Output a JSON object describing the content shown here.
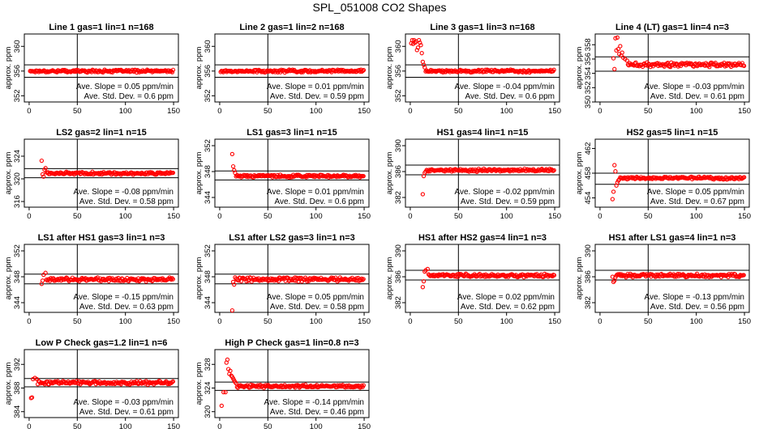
{
  "figure_title": "SPL_051008  CO2 Shapes",
  "colors": {
    "points": "#ff0000",
    "axes": "#000000",
    "background": "#ffffff"
  },
  "slope_prefix": "Ave. Slope =",
  "slope_unit": "ppm/min",
  "std_prefix": "Ave. Std. Dev. =",
  "std_unit": "ppm",
  "chart_data": [
    {
      "type": "scatter",
      "title": "Line 1 gas=1 lin=1 n=168",
      "ylabel": "approx. ppm",
      "xlim": [
        -5,
        155
      ],
      "ylim": [
        351,
        362
      ],
      "xticks": [
        0,
        50,
        100,
        150
      ],
      "yticks": [
        352,
        356,
        360
      ],
      "hlines": [
        357,
        355
      ],
      "vline": 50,
      "level": 356.0,
      "noise": 0.25,
      "spike": [],
      "slope": "0.05",
      "std": "0.6"
    },
    {
      "type": "scatter",
      "title": "Line 2 gas=1 lin=2 n=168",
      "ylabel": "approx. ppm",
      "xlim": [
        -5,
        155
      ],
      "ylim": [
        351,
        362
      ],
      "xticks": [
        0,
        50,
        100,
        150
      ],
      "yticks": [
        352,
        356,
        360
      ],
      "hlines": [
        357,
        355
      ],
      "vline": 50,
      "level": 356.0,
      "noise": 0.25,
      "spike": [],
      "slope": "0.01",
      "std": "0.59"
    },
    {
      "type": "scatter",
      "title": "Line 3 gas=1 lin=3 n=168",
      "ylabel": "approx. ppm",
      "xlim": [
        -5,
        155
      ],
      "ylim": [
        351,
        362
      ],
      "xticks": [
        0,
        50,
        100,
        150
      ],
      "yticks": [
        352,
        356,
        360
      ],
      "hlines": [
        357,
        355
      ],
      "vline": 50,
      "level": 356.0,
      "noise": 0.25,
      "spike": [
        [
          1,
          360.5
        ],
        [
          2,
          361
        ],
        [
          3,
          360.4
        ],
        [
          4,
          361
        ],
        [
          5,
          360.6
        ],
        [
          6,
          360.8
        ],
        [
          7,
          359.4
        ],
        [
          8,
          359.8
        ],
        [
          9,
          361
        ],
        [
          10,
          360.6
        ],
        [
          11,
          360.2
        ],
        [
          12,
          358.9
        ],
        [
          13,
          357.5
        ],
        [
          14,
          357.0
        ],
        [
          15,
          356.6
        ]
      ],
      "slope": "-0.04",
      "std": "0.6"
    },
    {
      "type": "scatter",
      "title": "Line 4 (LT) gas=1 lin=4 n=3",
      "ylabel": "approx. ppm",
      "xlim": [
        -5,
        155
      ],
      "ylim": [
        350,
        359.5
      ],
      "xticks": [
        0,
        50,
        100,
        150
      ],
      "yticks": [
        350,
        352,
        354,
        356,
        358
      ],
      "hlines": [
        356.3,
        354.3
      ],
      "vline": 50,
      "level": 355.2,
      "noise": 0.35,
      "spike": [
        [
          14,
          356.1
        ],
        [
          15,
          354.6
        ],
        [
          16,
          358.9
        ],
        [
          17,
          357.2
        ],
        [
          18,
          359
        ],
        [
          19,
          357.4
        ],
        [
          20,
          356.7
        ],
        [
          21,
          357.8
        ],
        [
          22,
          356.5
        ],
        [
          23,
          356.9
        ],
        [
          24,
          356.2
        ],
        [
          26,
          356.0
        ],
        [
          28,
          355.8
        ]
      ],
      "slope": "-0.03",
      "std": "0.61"
    },
    {
      "type": "scatter",
      "title": "LS2 gas=2 lin=1 n=15",
      "ylabel": "approx. ppm",
      "xlim": [
        -5,
        155
      ],
      "ylim": [
        315,
        327
      ],
      "xticks": [
        0,
        50,
        100,
        150
      ],
      "yticks": [
        316,
        320,
        324
      ],
      "hlines": [
        321.8,
        320.2
      ],
      "vline": 50,
      "level": 321.0,
      "noise": 0.3,
      "spike": [
        [
          13,
          323.2
        ],
        [
          14,
          320.8
        ],
        [
          15,
          320.4
        ],
        [
          16,
          321.6
        ],
        [
          17,
          321.9
        ]
      ],
      "slope": "-0.08",
      "std": "0.58"
    },
    {
      "type": "scatter",
      "title": "LS1 gas=3 lin=1 n=15",
      "ylabel": "approx. ppm",
      "xlim": [
        -5,
        155
      ],
      "ylim": [
        342.5,
        353
      ],
      "xticks": [
        0,
        50,
        100,
        150
      ],
      "yticks": [
        344,
        348,
        352
      ],
      "hlines": [
        348.1,
        346.7
      ],
      "vline": 50,
      "level": 347.3,
      "noise": 0.25,
      "spike": [
        [
          13,
          350.7
        ],
        [
          14,
          348.8
        ],
        [
          15,
          348.2
        ],
        [
          16,
          347.8
        ]
      ],
      "slope": "0.01",
      "std": "0.6"
    },
    {
      "type": "scatter",
      "title": "HS1 gas=4 lin=1 n=15",
      "ylabel": "approx. ppm",
      "xlim": [
        -5,
        155
      ],
      "ylim": [
        380.5,
        391
      ],
      "xticks": [
        0,
        50,
        100,
        150
      ],
      "yticks": [
        382,
        386,
        390
      ],
      "hlines": [
        387,
        385.5
      ],
      "vline": 50,
      "level": 386.2,
      "noise": 0.25,
      "spike": [
        [
          13,
          382.5
        ],
        [
          14,
          385.3
        ],
        [
          15,
          385.8
        ],
        [
          16,
          386.0
        ]
      ],
      "slope": "-0.02",
      "std": "0.59"
    },
    {
      "type": "scatter",
      "title": "HS2 gas=5 lin=1 n=15",
      "ylabel": "approx. ppm",
      "xlim": [
        -5,
        155
      ],
      "ylim": [
        452.5,
        463.5
      ],
      "xticks": [
        0,
        50,
        100,
        150
      ],
      "yticks": [
        454,
        458,
        462
      ],
      "hlines": [
        458,
        456.2
      ],
      "vline": 50,
      "level": 457.2,
      "noise": 0.25,
      "spike": [
        [
          13,
          453.8
        ],
        [
          14,
          455
        ],
        [
          15,
          459.3
        ],
        [
          16,
          458.3
        ],
        [
          17,
          456
        ],
        [
          18,
          456.5
        ],
        [
          19,
          456.8
        ],
        [
          20,
          457
        ]
      ],
      "slope": "0.05",
      "std": "0.67"
    },
    {
      "type": "scatter",
      "title": "LS1 after HS1 gas=3 lin=1 n=3",
      "ylabel": "approx. ppm",
      "xlim": [
        -5,
        155
      ],
      "ylim": [
        342.5,
        353
      ],
      "xticks": [
        0,
        50,
        100,
        150
      ],
      "yticks": [
        344,
        348,
        352
      ],
      "hlines": [
        348.4,
        346.9
      ],
      "vline": 50,
      "level": 347.6,
      "noise": 0.35,
      "spike": [
        [
          13,
          346.9
        ],
        [
          14,
          347.4
        ],
        [
          15,
          348.3
        ],
        [
          17,
          348.6
        ]
      ],
      "slope": "-0.15",
      "std": "0.63"
    },
    {
      "type": "scatter",
      "title": "LS1 after LS2 gas=3 lin=1 n=3",
      "ylabel": "approx. ppm",
      "xlim": [
        -5,
        155
      ],
      "ylim": [
        342.5,
        353
      ],
      "xticks": [
        0,
        50,
        100,
        150
      ],
      "yticks": [
        344,
        348,
        352
      ],
      "hlines": [
        348.4,
        346.9
      ],
      "vline": 50,
      "level": 347.6,
      "noise": 0.35,
      "spike": [
        [
          13,
          342.8
        ],
        [
          14,
          347.2
        ],
        [
          15,
          346.8
        ],
        [
          16,
          347.9
        ]
      ],
      "slope": "0.05",
      "std": "0.58"
    },
    {
      "type": "scatter",
      "title": "HS1 after HS2 gas=4 lin=1 n=3",
      "ylabel": "approx. ppm",
      "xlim": [
        -5,
        155
      ],
      "ylim": [
        380.5,
        391
      ],
      "xticks": [
        0,
        50,
        100,
        150
      ],
      "yticks": [
        382,
        386,
        390
      ],
      "hlines": [
        387,
        385.5
      ],
      "vline": 50,
      "level": 386.2,
      "noise": 0.3,
      "spike": [
        [
          13,
          384.4
        ],
        [
          14,
          385.3
        ],
        [
          15,
          386.8
        ],
        [
          16,
          387.0
        ],
        [
          18,
          387.2
        ]
      ],
      "slope": "0.02",
      "std": "0.62"
    },
    {
      "type": "scatter",
      "title": "HS1 after LS1 gas=4 lin=1 n=3",
      "ylabel": "approx. ppm",
      "xlim": [
        -5,
        155
      ],
      "ylim": [
        380.5,
        391
      ],
      "xticks": [
        0,
        50,
        100,
        150
      ],
      "yticks": [
        382,
        386,
        390
      ],
      "hlines": [
        387,
        385.5
      ],
      "vline": 50,
      "level": 386.2,
      "noise": 0.3,
      "spike": [
        [
          13,
          386.0
        ],
        [
          14,
          385.2
        ],
        [
          15,
          385.4
        ],
        [
          16,
          385.9
        ]
      ],
      "slope": "-0.13",
      "std": "0.56"
    },
    {
      "type": "scatter",
      "title": "Low P Check gas=1.2 lin=1 n=6",
      "ylabel": "approx. ppm",
      "xlim": [
        -5,
        155
      ],
      "ylim": [
        383,
        394.5
      ],
      "xticks": [
        0,
        50,
        100,
        150
      ],
      "yticks": [
        384,
        388,
        392
      ],
      "hlines": [
        389.6,
        388.2
      ],
      "vline": 50,
      "level": 388.9,
      "noise": 0.35,
      "spike": [
        [
          2,
          386.3
        ],
        [
          3,
          386.4
        ],
        [
          4,
          389.5
        ],
        [
          6,
          389.7
        ],
        [
          8,
          389.5
        ]
      ],
      "slope": "-0.03",
      "std": "0.61"
    },
    {
      "type": "scatter",
      "title": "High P Check gas=1 lin=0.8 n=3",
      "ylabel": "approx. ppm",
      "xlim": [
        -5,
        155
      ],
      "ylim": [
        319,
        330.5
      ],
      "xticks": [
        0,
        50,
        100,
        150
      ],
      "yticks": [
        320,
        324,
        328
      ],
      "hlines": [
        325,
        323.6
      ],
      "vline": 50,
      "level": 324.3,
      "noise": 0.3,
      "spike": [
        [
          2,
          321
        ],
        [
          4,
          323.3
        ],
        [
          6,
          323.3
        ],
        [
          7,
          328.3
        ],
        [
          8,
          328.8
        ],
        [
          9,
          327.2
        ],
        [
          10,
          326.4
        ],
        [
          11,
          326.9
        ],
        [
          12,
          326.1
        ],
        [
          13,
          325.9
        ],
        [
          14,
          325.6
        ],
        [
          15,
          325.3
        ],
        [
          16,
          325.0
        ],
        [
          17,
          324.8
        ]
      ],
      "slope": "-0.14",
      "std": "0.46"
    }
  ]
}
